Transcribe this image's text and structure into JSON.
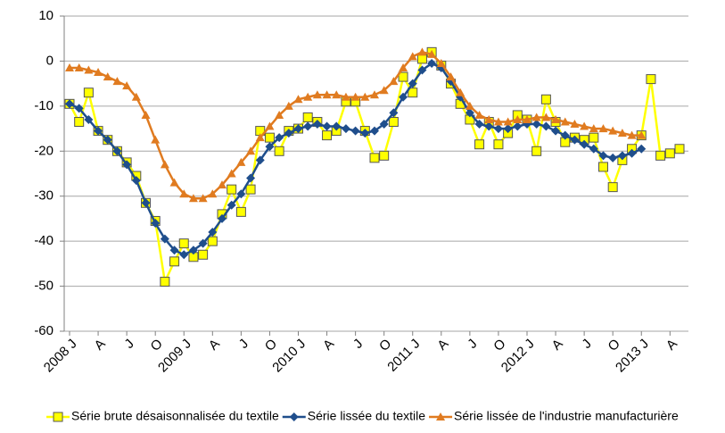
{
  "chart_data": {
    "type": "line",
    "categories": [
      "2008 J",
      null,
      null,
      "A",
      null,
      null,
      "J",
      null,
      null,
      "O",
      null,
      null,
      "2009 J",
      null,
      null,
      "A",
      null,
      null,
      "J",
      null,
      null,
      "O",
      null,
      null,
      "2010 J",
      null,
      null,
      "A",
      null,
      null,
      "J",
      null,
      null,
      "O",
      null,
      null,
      "2011 J",
      null,
      null,
      "A",
      null,
      null,
      "J",
      null,
      null,
      "O",
      null,
      null,
      "2012 J",
      null,
      null,
      "A",
      null,
      null,
      "J",
      null,
      null,
      "O",
      null,
      null,
      "2013 J",
      null,
      null,
      "A",
      null
    ],
    "series": [
      {
        "name": "Série brute désaisonnalisée du textile",
        "color": "#ffff00",
        "marker": "square",
        "values": [
          -9.5,
          -13.5,
          -7,
          -15.5,
          -17.5,
          -20,
          -22.5,
          -25.5,
          -31.5,
          -35.5,
          -49,
          -44.5,
          -40.5,
          -43.5,
          -43,
          -40,
          -34,
          -28.5,
          -33.5,
          -28.5,
          -15.5,
          -17,
          -20,
          -15.5,
          -15,
          -12.5,
          -13.5,
          -16.5,
          -15.5,
          -9,
          -9,
          -15.5,
          -21.5,
          -21,
          -13.5,
          -3.5,
          -7,
          0.5,
          2,
          -1,
          -5,
          -9.5,
          -13,
          -18.5,
          -13.5,
          -18.5,
          -16,
          -12,
          -13,
          -20,
          -8.5,
          -13.5,
          -18,
          -17,
          -17.5,
          -17,
          -23.5,
          -28,
          -22,
          -19.5,
          -16.5,
          -4,
          -21,
          -20.5,
          -19.5
        ]
      },
      {
        "name": "Série lissée du textile",
        "color": "#1f4e8c",
        "marker": "diamond",
        "values": [
          -9.5,
          -10.5,
          -13,
          -15.5,
          -17.5,
          -20,
          -23,
          -26.5,
          -31.5,
          -36,
          -39.5,
          -42,
          -43,
          -42,
          -40.5,
          -38,
          -35,
          -32,
          -29.5,
          -26,
          -22,
          -19,
          -17,
          -16,
          -15,
          -14.5,
          -14,
          -14.5,
          -14.5,
          -15,
          -15.5,
          -16,
          -15.5,
          -14,
          -11.5,
          -8,
          -5,
          -2,
          -0.5,
          -1.5,
          -4.5,
          -8,
          -11.5,
          -14,
          -14.5,
          -15,
          -15,
          -14.5,
          -14,
          -14,
          -14.5,
          -15.5,
          -16.5,
          -17.5,
          -18.5,
          -19.5,
          -21,
          -21.5,
          -21,
          -20.5,
          -19.5,
          null,
          null,
          null,
          null
        ]
      },
      {
        "name": "Série lissée de l'industrie manufacturière",
        "color": "#e07b20",
        "marker": "triangle",
        "values": [
          -1.5,
          -1.5,
          -2,
          -2.5,
          -3.5,
          -4.5,
          -5.5,
          -8,
          -12,
          -17.5,
          -23,
          -27,
          -29.5,
          -30.5,
          -30.5,
          -29.5,
          -27.5,
          -25,
          -22.5,
          -20,
          -17,
          -14.5,
          -12,
          -10,
          -8.5,
          -8,
          -7.5,
          -7.5,
          -7.5,
          -8,
          -8,
          -8,
          -7.5,
          -6.5,
          -4.5,
          -1.5,
          1,
          2,
          1.5,
          -0.5,
          -3.5,
          -7,
          -10,
          -12,
          -13,
          -13.5,
          -13.5,
          -13,
          -13,
          -12.5,
          -12.5,
          -13,
          -13.5,
          -14,
          -14.5,
          -15,
          -15,
          -15.5,
          -16,
          -16.5,
          -16.5,
          null,
          null,
          null,
          null
        ]
      }
    ],
    "ylim": [
      -60,
      10
    ],
    "yticks": [
      -60,
      -50,
      -40,
      -30,
      -20,
      -10,
      0,
      10
    ],
    "grid": true,
    "legend": "bottom"
  }
}
